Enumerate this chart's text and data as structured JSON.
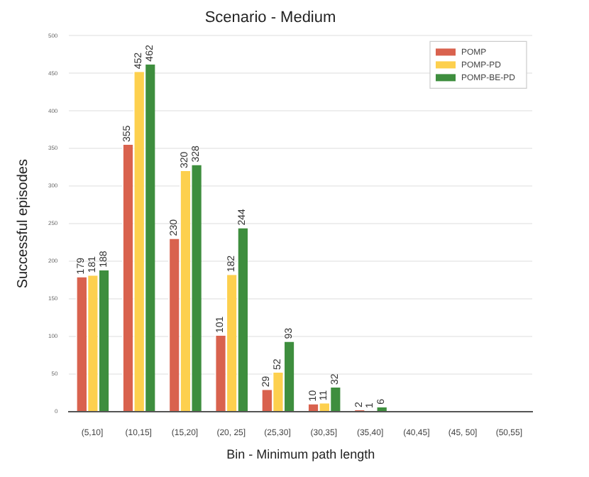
{
  "chart_data": {
    "type": "bar",
    "title": "Scenario - Medium",
    "xlabel": "Bin - Minimum path length",
    "ylabel": "Successful episodes",
    "categories": [
      "(5,10]",
      "(10,15]",
      "(15,20]",
      "(20, 25]",
      "(25,30]",
      "(30,35]",
      "(35,40]",
      "(40,45]",
      "(45, 50]",
      "(50,55]"
    ],
    "series": [
      {
        "name": "POMP",
        "color": "#d9624e",
        "values": [
          179,
          355,
          230,
          101,
          29,
          10,
          2,
          0,
          0,
          0
        ],
        "value_labels": [
          "179",
          "355",
          "230",
          "101",
          "29",
          "10",
          "2",
          null,
          null,
          null
        ]
      },
      {
        "name": "POMP-PD",
        "color": "#fdd04e",
        "values": [
          181,
          452,
          320,
          182,
          52,
          11,
          1,
          0,
          0,
          0
        ],
        "value_labels": [
          "181",
          "452",
          "320",
          "182",
          "52",
          "11",
          "1",
          null,
          null,
          null
        ]
      },
      {
        "name": "POMP-BE-PD",
        "color": "#3e8e3e",
        "values": [
          188,
          462,
          328,
          244,
          93,
          32,
          6,
          0,
          0,
          0
        ],
        "value_labels": [
          "188",
          "462",
          "328",
          "244",
          "93",
          "32",
          "6",
          null,
          null,
          null
        ]
      }
    ],
    "ylim": [
      0,
      500
    ],
    "yticks": [
      0,
      50,
      100,
      150,
      200,
      250,
      300,
      350,
      400,
      450,
      500
    ],
    "grid": "y",
    "legend": "top right"
  }
}
